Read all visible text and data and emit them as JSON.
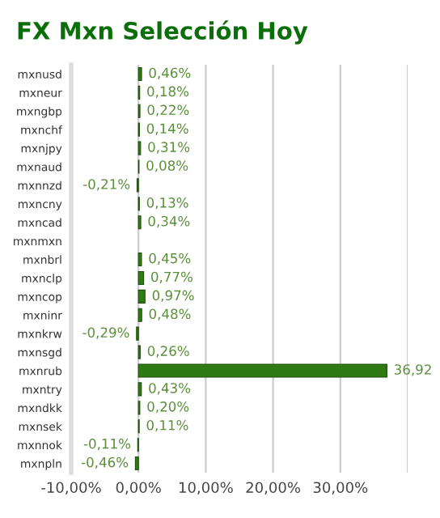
{
  "chart_data": {
    "type": "bar",
    "orientation": "horizontal",
    "title": "FX Mxn Selección Hoy",
    "categories": [
      "mxnusd",
      "mxneur",
      "mxngbp",
      "mxnchf",
      "mxnjpy",
      "mxnaud",
      "mxnnzd",
      "mxncny",
      "mxncad",
      "mxnmxn",
      "mxnbrl",
      "mxnclp",
      "mxncop",
      "mxninr",
      "mxnkrw",
      "mxnsgd",
      "mxnrub",
      "mxntry",
      "mxndkk",
      "mxnsek",
      "mxnnok",
      "mxnpln"
    ],
    "values": [
      0.46,
      0.18,
      0.22,
      0.14,
      0.31,
      0.08,
      -0.21,
      0.13,
      0.34,
      null,
      0.45,
      0.77,
      0.97,
      0.48,
      -0.29,
      0.26,
      36.92,
      0.43,
      0.2,
      0.11,
      -0.11,
      -0.46
    ],
    "value_labels": [
      "0,46%",
      "0,18%",
      "0,22%",
      "0,14%",
      "0,31%",
      "0,08%",
      "-0,21%",
      "0,13%",
      "0,34%",
      null,
      "0,45%",
      "0,77%",
      "0,97%",
      "0,48%",
      "-0,29%",
      "0,26%",
      "36,92",
      "0,43%",
      "0,20%",
      "0,11%",
      "-0,11%",
      "-0,46%"
    ],
    "color": "#2f7a12",
    "xlim": [
      -10,
      40
    ],
    "xticks": [
      {
        "value": -10,
        "label": "-10,00%"
      },
      {
        "value": 0,
        "label": "0,00%"
      },
      {
        "value": 10,
        "label": "10,00%"
      },
      {
        "value": 20,
        "label": "20,00%"
      },
      {
        "value": 30,
        "label": "30,00%"
      },
      {
        "value": 40,
        "label": null
      }
    ],
    "grid": "x"
  }
}
